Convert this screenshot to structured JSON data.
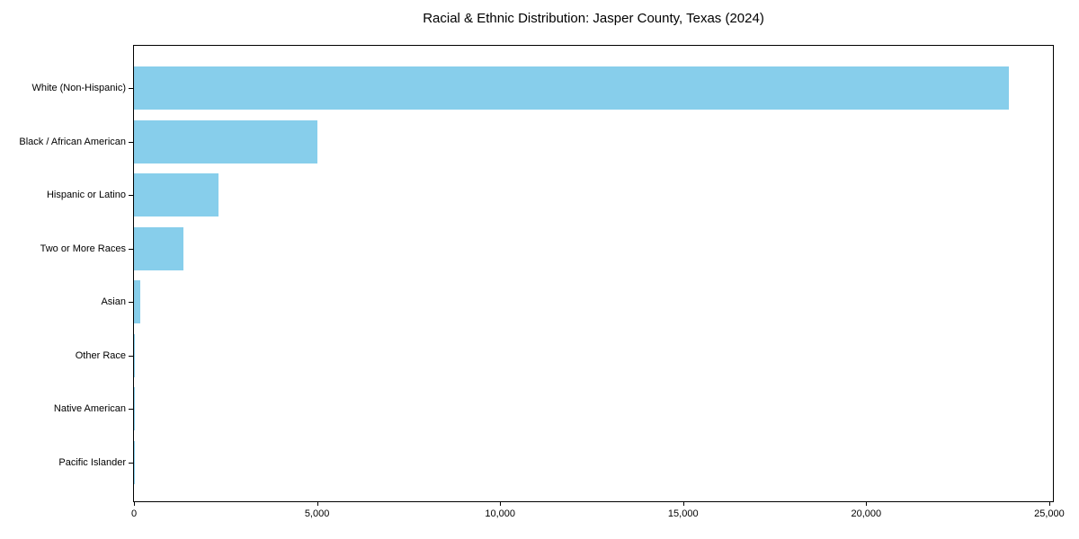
{
  "chart_data": {
    "type": "bar",
    "orientation": "horizontal",
    "title": "Racial & Ethnic Distribution: Jasper County, Texas (2024)",
    "categories": [
      "White (Non-Hispanic)",
      "Black / African American",
      "Hispanic or Latino",
      "Two or More Races",
      "Asian",
      "Other Race",
      "Native American",
      "Pacific Islander"
    ],
    "values": [
      23900,
      5000,
      2300,
      1340,
      160,
      35,
      25,
      10
    ],
    "bar_color": "#87CEEB",
    "axis_color": "#000000",
    "text_color": "#000000",
    "xlim": [
      0,
      25100
    ],
    "x_ticks": [
      {
        "value": 0,
        "label": "0"
      },
      {
        "value": 5000,
        "label": "5,000"
      },
      {
        "value": 10000,
        "label": "10,000"
      },
      {
        "value": 15000,
        "label": "15,000"
      },
      {
        "value": 20000,
        "label": "20,000"
      },
      {
        "value": 25000,
        "label": "25,000"
      }
    ],
    "grid": false,
    "legend": false
  }
}
